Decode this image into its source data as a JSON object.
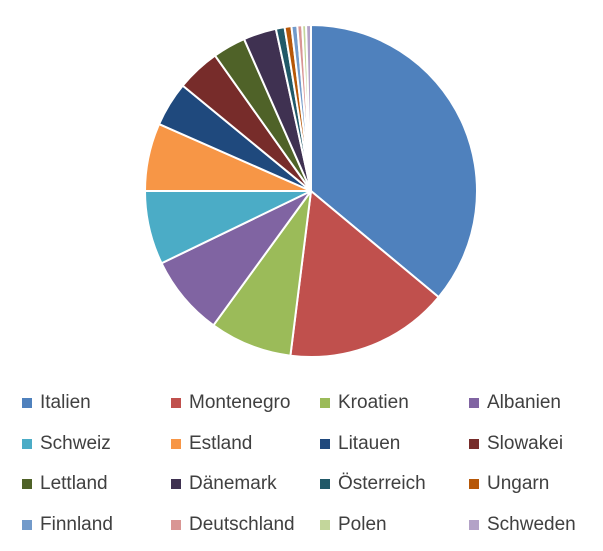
{
  "chart_data": {
    "type": "pie",
    "title": "",
    "start_angle_deg": 0,
    "direction": "clockwise",
    "legend_position": "bottom",
    "categories": [
      "Italien",
      "Montenegro",
      "Kroatien",
      "Albanien",
      "Schweiz",
      "Estland",
      "Litauen",
      "Slowakei",
      "Lettland",
      "Dänemark",
      "Österreich",
      "Ungarn",
      "Finnland",
      "Deutschland",
      "Polen",
      "Schweden"
    ],
    "values": [
      38.2,
      16.9,
      8.5,
      8.3,
      7.6,
      7.0,
      4.6,
      4.5,
      3.4,
      3.4,
      0.9,
      0.7,
      0.6,
      0.5,
      0.4,
      0.5
    ],
    "colors": [
      "#4f81bd",
      "#c0504d",
      "#9bbb59",
      "#8064a2",
      "#4bacc6",
      "#f79646",
      "#1f497d",
      "#772c2a",
      "#4f6228",
      "#3f3151",
      "#215968",
      "#b65708",
      "#729aca",
      "#d99694",
      "#c3d69b",
      "#b3a2c7"
    ]
  }
}
